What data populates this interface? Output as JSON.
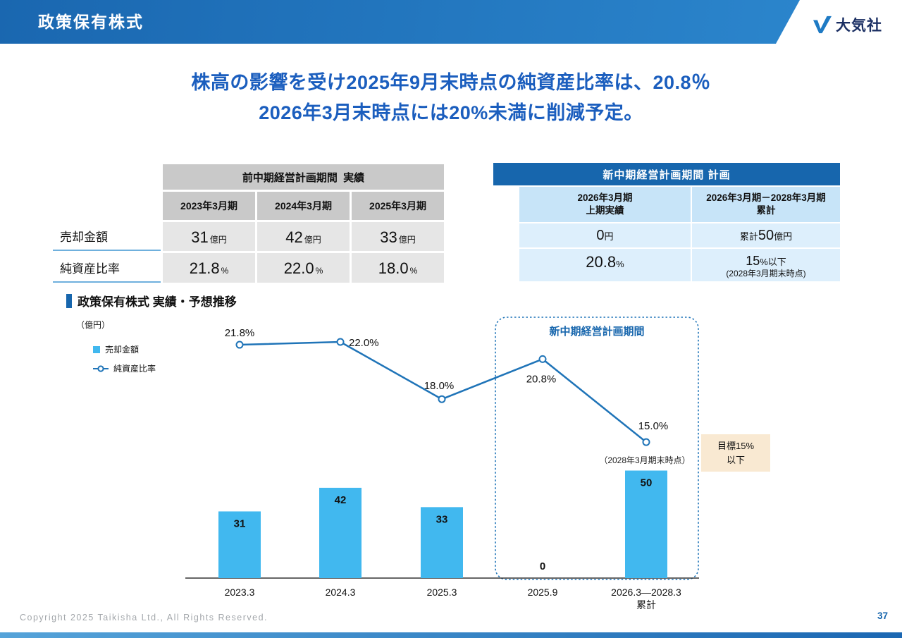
{
  "header": {
    "title": "政策保有株式",
    "logo": "大気社"
  },
  "headline": {
    "line1": "株高の影響を受け2025年9月末時点の純資産比率は、20.8％",
    "line2": "2026年3月末時点には20%未満に削減予定。"
  },
  "past_table": {
    "title": "前中期経営計画期間  実績",
    "columns": [
      "2023年3月期",
      "2024年3月期",
      "2025年3月期"
    ],
    "row_labels": [
      "売却金額",
      "純資産比率"
    ],
    "sales": [
      {
        "num": "31",
        "unit": "億円"
      },
      {
        "num": "42",
        "unit": "億円"
      },
      {
        "num": "33",
        "unit": "億円"
      }
    ],
    "ratio": [
      {
        "num": "21.8",
        "unit": "%"
      },
      {
        "num": "22.0",
        "unit": "%"
      },
      {
        "num": "18.0",
        "unit": "%"
      }
    ]
  },
  "plan_table": {
    "title": "新中期経営計画期間 計画",
    "columns": [
      "2026年3月期\n上期実績",
      "2026年3月期－2028年3月期\n累計"
    ],
    "sales": [
      {
        "pre": "",
        "num": "0",
        "unit": "円"
      },
      {
        "pre": "累計",
        "num": "50",
        "unit": "億円"
      }
    ],
    "ratio": [
      {
        "num": "20.8",
        "unit": "%",
        "note": ""
      },
      {
        "num": "15",
        "unit": "%以下",
        "note": "(2028年3月期末時点)"
      }
    ]
  },
  "chart_section": {
    "title": "政策保有株式 実績・予想推移",
    "unit_label": "（億円）",
    "legend": [
      {
        "label": "売却金額"
      },
      {
        "label": "純資産比率"
      }
    ],
    "plan_box_label": "新中期経営計画期間",
    "bar50_note": "（2028年3月期末時点）",
    "goal_note": "目標15%\n以下"
  },
  "chart_data": {
    "type": "bar",
    "categories": [
      "2023.3",
      "2024.3",
      "2025.3",
      "2025.9",
      "2026.3―2028.3\n累計"
    ],
    "series": [
      {
        "name": "売却金額",
        "type": "bar",
        "unit": "億円",
        "values": [
          31,
          42,
          33,
          0,
          50
        ]
      },
      {
        "name": "純資産比率",
        "type": "line",
        "unit": "%",
        "values": [
          21.8,
          22.0,
          18.0,
          20.8,
          15.0
        ]
      }
    ],
    "bar_labels": [
      "31",
      "42",
      "33",
      "0",
      "50"
    ],
    "point_labels": [
      "21.8%",
      "22.0%",
      "18.0%",
      "20.8%",
      "15.0%"
    ],
    "plan_period_categories": [
      "2025.9",
      "2026.3―2028.3 累計"
    ],
    "legend_position": "left",
    "grid": false,
    "colors": {
      "bar": "#41b8ef",
      "line": "#1f74b8",
      "plan_box": "#1766ad"
    }
  },
  "footer": {
    "copyright": "Copyright  2025 Taikisha Ltd., All Rights Reserved.",
    "page": "37"
  }
}
